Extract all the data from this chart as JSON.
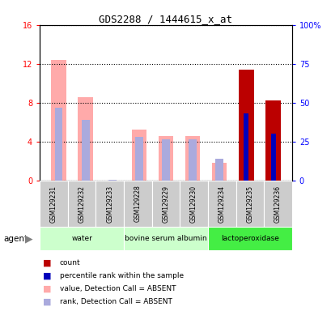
{
  "title": "GDS2288 / 1444615_x_at",
  "samples": [
    "GSM129231",
    "GSM129232",
    "GSM129233",
    "GSM129228",
    "GSM129229",
    "GSM129230",
    "GSM129234",
    "GSM129235",
    "GSM129236"
  ],
  "group_defs": [
    {
      "start": 0,
      "end": 2,
      "label": "water",
      "color": "#ccffcc"
    },
    {
      "start": 3,
      "end": 5,
      "label": "bovine serum albumin",
      "color": "#ccffcc"
    },
    {
      "start": 6,
      "end": 8,
      "label": "lactoperoxidase",
      "color": "#44ee44"
    }
  ],
  "value_absent": [
    12.4,
    8.6,
    0.0,
    5.2,
    4.6,
    4.6,
    1.8,
    0.0,
    0.0
  ],
  "rank_absent_left": [
    7.5,
    6.2,
    0.1,
    4.5,
    4.2,
    4.2,
    2.2,
    0.0,
    0.0
  ],
  "count_value": [
    0.0,
    0.0,
    0.0,
    0.0,
    0.0,
    0.0,
    0.0,
    11.4,
    8.2
  ],
  "count_pct_right": [
    0.0,
    0.0,
    0.0,
    0.0,
    0.0,
    0.0,
    0.0,
    43.0,
    30.0
  ],
  "ylim_left": [
    0,
    16
  ],
  "ylim_right": [
    0,
    100
  ],
  "yticks_left": [
    0,
    4,
    8,
    12,
    16
  ],
  "ytick_labels_left": [
    "0",
    "4",
    "8",
    "12",
    "16"
  ],
  "yticks_right": [
    0,
    25,
    50,
    75,
    100
  ],
  "ytick_labels_right": [
    "0",
    "25",
    "50",
    "75",
    "100%"
  ],
  "color_count": "#bb0000",
  "color_pct_rank": "#0000bb",
  "color_value_absent": "#ffaaaa",
  "color_rank_absent": "#aaaadd",
  "legend_items": [
    {
      "color": "#bb0000",
      "label": "count"
    },
    {
      "color": "#0000bb",
      "label": "percentile rank within the sample"
    },
    {
      "color": "#ffaaaa",
      "label": "value, Detection Call = ABSENT"
    },
    {
      "color": "#aaaadd",
      "label": "rank, Detection Call = ABSENT"
    }
  ]
}
